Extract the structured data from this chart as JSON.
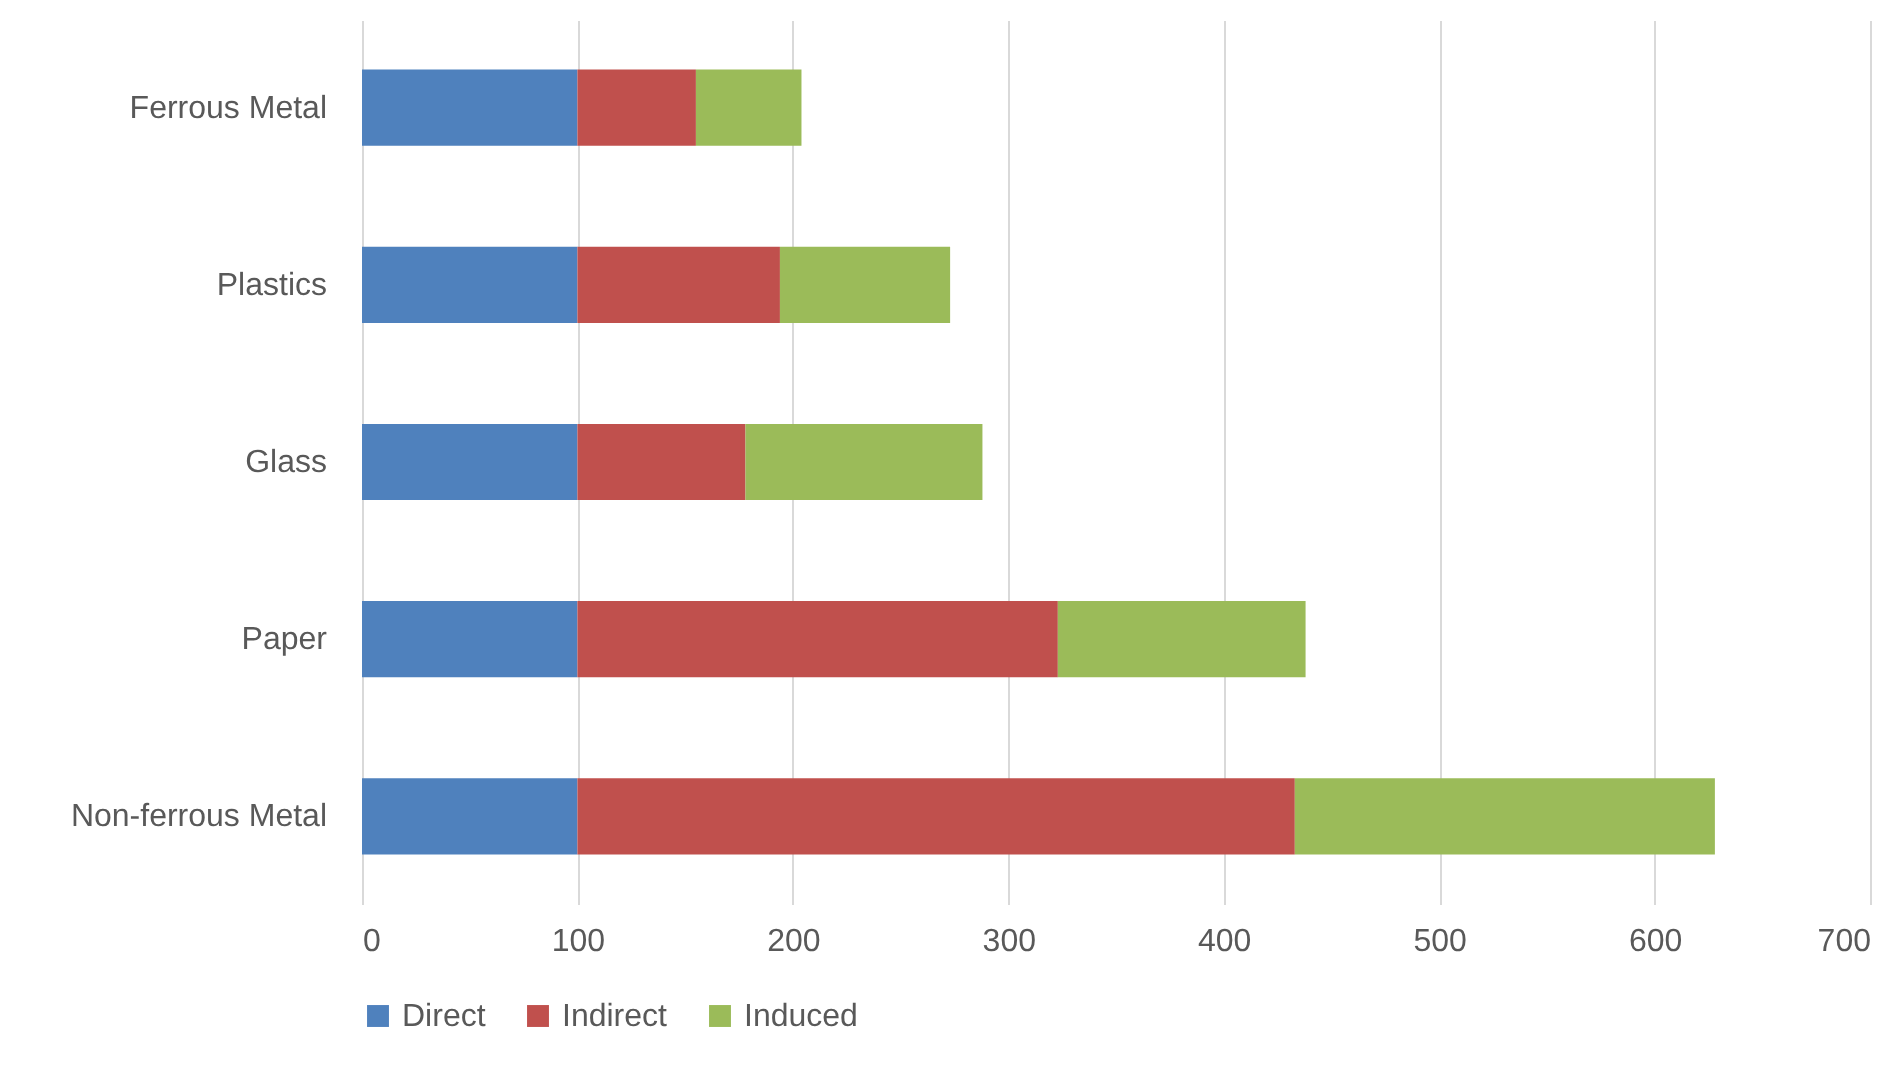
{
  "chart_data": {
    "type": "bar",
    "orientation": "horizontal",
    "stacked": true,
    "categories": [
      "Ferrous Metal",
      "Plastics",
      "Glass",
      "Paper",
      "Non-ferrous Metal"
    ],
    "series": [
      {
        "name": "Direct",
        "color": "#4f81bd",
        "values": [
          100,
          100,
          100,
          100,
          100
        ]
      },
      {
        "name": "Indirect",
        "color": "#c0504d",
        "values": [
          55,
          94,
          78,
          223,
          333
        ]
      },
      {
        "name": "Induced",
        "color": "#9bbb59",
        "values": [
          49,
          79,
          110,
          115,
          195
        ]
      }
    ],
    "xlim": [
      0,
      700
    ],
    "xticks": [
      0,
      100,
      200,
      300,
      400,
      500,
      600,
      700
    ],
    "grid": "x",
    "legend": "bottom"
  }
}
